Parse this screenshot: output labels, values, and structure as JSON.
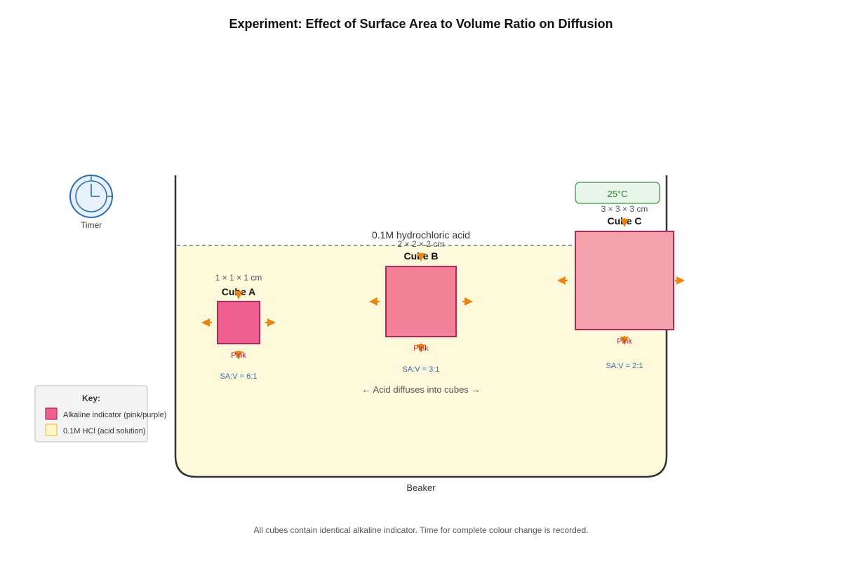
{
  "title": "Experiment: Effect of Surface Area to Volume Ratio on Diffusion",
  "timer": {
    "label": "Timer"
  },
  "temperature": {
    "label": "25°C"
  },
  "acid": {
    "label": "0.1M hydrochloric acid"
  },
  "diffusion_note": "← Acid diffuses into cubes →",
  "beaker": {
    "label": "Beaker"
  },
  "key": {
    "title": "Key:",
    "items": [
      {
        "label": "Alkaline indicator (pink/purple)",
        "color": "#ef5f8d"
      },
      {
        "label": "0.1M HCl (acid solution)",
        "color": "#fff6c9"
      }
    ]
  },
  "cubes": [
    {
      "name": "Cube A",
      "dimensions": "1 × 1 × 1 cm",
      "status": "Pink",
      "ratio": "SA:V = 6:1",
      "color": "#ef5f8d"
    },
    {
      "name": "Cube B",
      "dimensions": "2 × 2 × 2 cm",
      "status": "Pink",
      "ratio": "SA:V = 3:1",
      "color": "#f28097"
    },
    {
      "name": "Cube C",
      "dimensions": "3 × 3 × 3 cm",
      "status": "Pink",
      "ratio": "SA:V = 2:1",
      "color": "#f4a1ab"
    }
  ],
  "footnote": "All cubes contain identical alkaline indicator. Time for complete colour change is recorded.",
  "colors": {
    "acid_solution": "#fff9dc",
    "beaker_outline": "#333333",
    "arrow": "#ea8412",
    "cube_border": "#b0285b",
    "timer": "#2b6cb0",
    "temperature_box": "#e8f5e9",
    "temperature_border": "#58a55c"
  }
}
